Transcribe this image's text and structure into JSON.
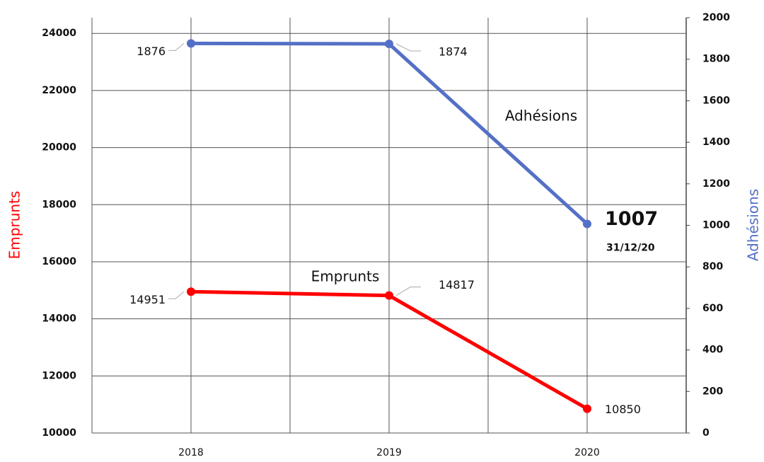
{
  "chart_data": {
    "type": "line",
    "categories": [
      "2018",
      "2019",
      "2020"
    ],
    "series": [
      {
        "name": "Emprunts",
        "color": "#ff0000",
        "values": [
          14951,
          14817,
          10850
        ]
      },
      {
        "name": "Adhésions",
        "color": "#5470c6",
        "axis": "y2",
        "values": [
          1876,
          1874,
          1007
        ]
      }
    ],
    "y_label": "Emprunts",
    "y2_label": "Adhésions",
    "annotation": "31/12/20",
    "ylim": [
      10000,
      24550
    ],
    "yticks": [
      10000,
      12000,
      14000,
      16000,
      18000,
      20000,
      22000,
      24000
    ],
    "y2lim": [
      0,
      2000
    ],
    "y2ticks": [
      0,
      200,
      400,
      600,
      800,
      1000,
      1200,
      1400,
      1600,
      1800,
      2000
    ],
    "grid": true
  }
}
